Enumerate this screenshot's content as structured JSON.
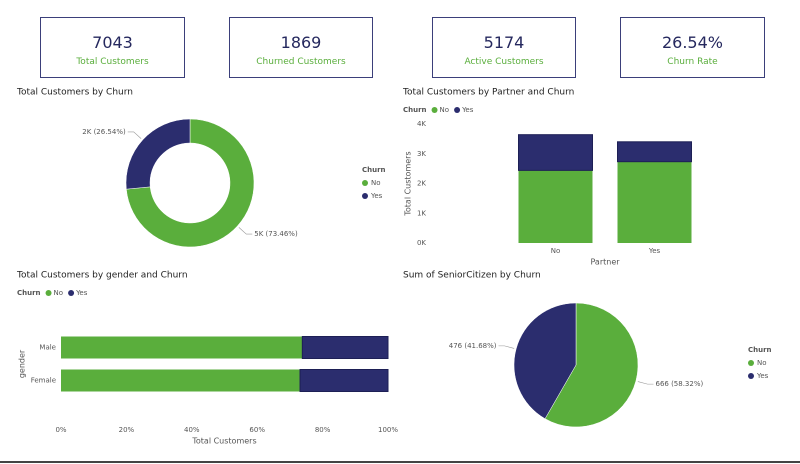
{
  "cards": [
    {
      "value": "7043",
      "label": "Total Customers"
    },
    {
      "value": "1869",
      "label": "Churned Customers"
    },
    {
      "value": "5174",
      "label": "Active Customers"
    },
    {
      "value": "26.54%",
      "label": "Churn Rate"
    }
  ],
  "chart_data": [
    {
      "type": "donut",
      "title": "Total Customers by Churn",
      "legend_title": "Churn",
      "categories": [
        "No",
        "Yes"
      ],
      "values": [
        5174,
        1869
      ],
      "value_labels": [
        "5K (73.46%)",
        "2K (26.54%)"
      ],
      "colors": [
        "#5aae3c",
        "#2b2d6e"
      ]
    },
    {
      "type": "column",
      "title": "Total Customers by Partner and Churn",
      "legend_title": "Churn",
      "x_label": "Partner",
      "y_label": "Total Customers",
      "categories": [
        "No",
        "Yes"
      ],
      "series": [
        {
          "name": "No",
          "color": "#5aae3c",
          "values": [
            2441,
            2733
          ]
        },
        {
          "name": "Yes",
          "color": "#2b2d6e",
          "values": [
            1200,
            669
          ]
        }
      ],
      "ylim": [
        0,
        4000
      ],
      "yticks": [
        {
          "value": 0,
          "label": "0K"
        },
        {
          "value": 1000,
          "label": "1K"
        },
        {
          "value": 2000,
          "label": "2K"
        },
        {
          "value": 3000,
          "label": "3K"
        },
        {
          "value": 4000,
          "label": "4K"
        }
      ]
    },
    {
      "type": "bar",
      "title": "Total Customers by gender and Churn",
      "legend_title": "Churn",
      "x_label": "Total Customers",
      "y_label": "gender",
      "categories": [
        "Male",
        "Female"
      ],
      "series": [
        {
          "name": "No",
          "color": "#5aae3c",
          "values": [
            73.8,
            73.1
          ]
        },
        {
          "name": "Yes",
          "color": "#2b2d6e",
          "values": [
            26.2,
            26.9
          ]
        }
      ],
      "xlim": [
        0,
        100
      ],
      "xticks": [
        {
          "value": 0,
          "label": "0%"
        },
        {
          "value": 20,
          "label": "20%"
        },
        {
          "value": 40,
          "label": "40%"
        },
        {
          "value": 60,
          "label": "60%"
        },
        {
          "value": 80,
          "label": "80%"
        },
        {
          "value": 100,
          "label": "100%"
        }
      ]
    },
    {
      "type": "pie",
      "title": "Sum of SeniorCitizen by Churn",
      "legend_title": "Churn",
      "categories": [
        "No",
        "Yes"
      ],
      "values": [
        666,
        476
      ],
      "value_labels": [
        "666 (58.32%)",
        "476 (41.68%)"
      ],
      "colors": [
        "#5aae3c",
        "#2b2d6e"
      ]
    }
  ]
}
